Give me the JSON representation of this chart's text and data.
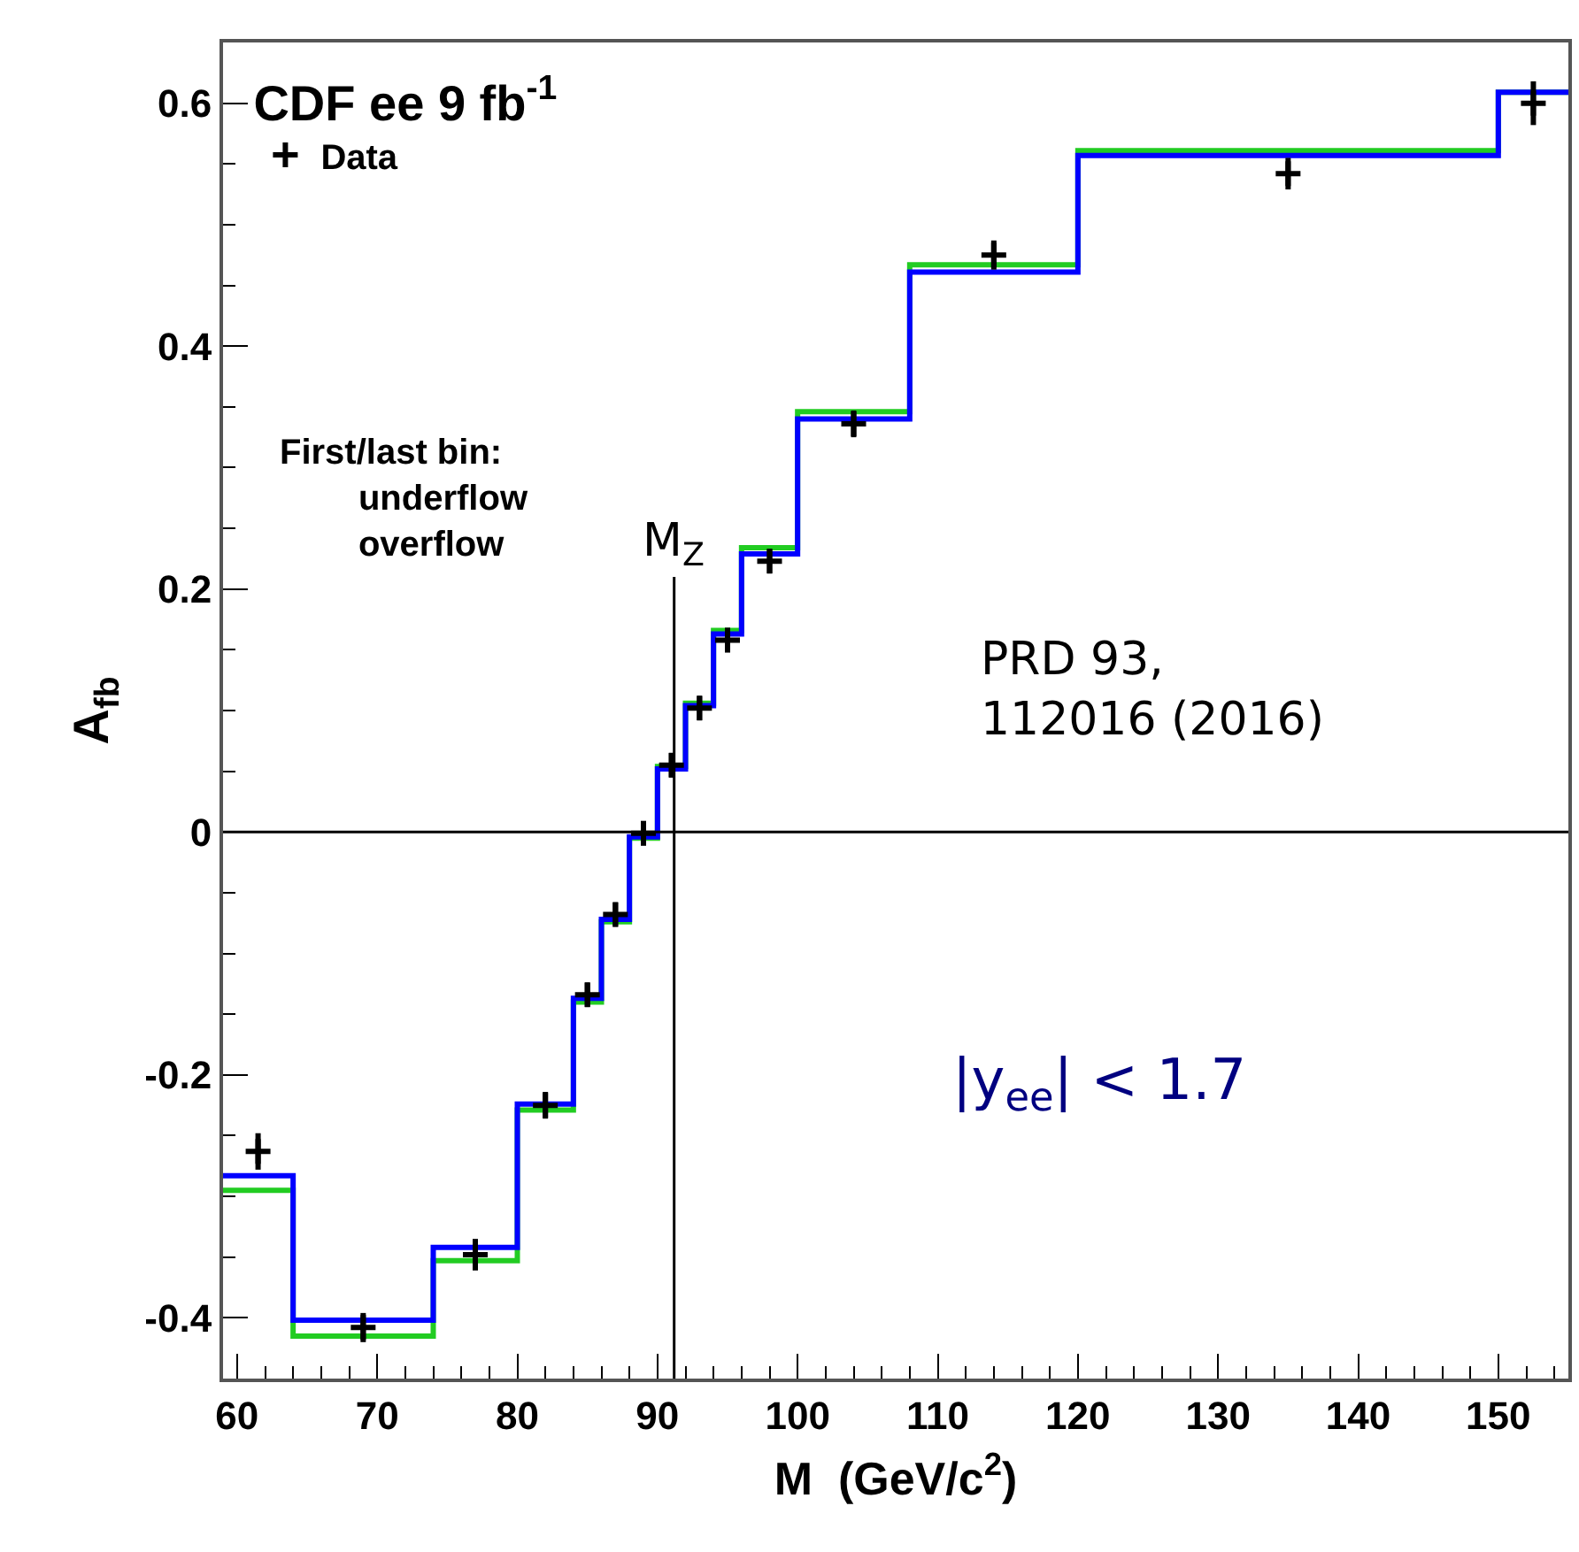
{
  "chart_data": {
    "type": "histogram",
    "xlabel": "M  (GeV/c$^{2}$)",
    "ylabel": "A$_{fb}$",
    "legend_title": "CDF ee 9 fb$^{-1}$",
    "bins": [
      59,
      64,
      74,
      80,
      84,
      86,
      88,
      90,
      92,
      94,
      96,
      100,
      108,
      120,
      150,
      155
    ],
    "series": [
      {
        "color": "#22cc22",
        "values": [
          -0.295,
          -0.415,
          -0.353,
          -0.229,
          -0.14,
          -0.074,
          -0.005,
          0.054,
          0.106,
          0.166,
          0.234,
          0.346,
          0.467,
          0.561,
          0.609
        ]
      },
      {
        "color": "#0000ff",
        "values": [
          -0.283,
          -0.402,
          -0.342,
          -0.224,
          -0.137,
          -0.072,
          -0.004,
          0.052,
          0.104,
          0.163,
          0.229,
          0.34,
          0.461,
          0.557,
          0.609
        ]
      },
      {
        "type": "scatter",
        "name": "Data",
        "color": "#000000",
        "marker": "cross",
        "x": [
          61.5,
          69,
          77,
          82,
          85,
          87,
          89,
          91,
          93,
          95,
          98,
          104,
          114,
          135,
          152.5
        ],
        "values": [
          -0.263,
          -0.408,
          -0.348,
          -0.225,
          -0.134,
          -0.068,
          -0.001,
          0.055,
          0.102,
          0.158,
          0.223,
          0.336,
          0.475,
          0.542,
          0.6
        ],
        "errors": [
          0.015,
          0.012,
          0.013,
          0.011,
          0.01,
          0.01,
          0.01,
          0.01,
          0.01,
          0.01,
          0.01,
          0.011,
          0.012,
          0.013,
          0.018
        ]
      }
    ],
    "xlim": [
      59,
      155
    ],
    "ylim": [
      -0.45,
      0.65
    ],
    "xticks": [
      60,
      70,
      80,
      90,
      100,
      110,
      120,
      130,
      140,
      150
    ],
    "yticks": [
      -0.4,
      -0.2,
      0,
      0.2,
      0.4,
      0.6
    ],
    "ref_lines": [
      {
        "axis": "y",
        "value": 0,
        "color": "#000000"
      },
      {
        "axis": "x",
        "value": 91.19,
        "label": "M$_{Z}$",
        "color": "#000000"
      }
    ],
    "annotations": [
      "First/last bin:\nunderflow\noverflow",
      "PRD 93,\n112016 (2016)",
      "|y$_{ee}$| < 1.7"
    ],
    "legend": "top left"
  }
}
